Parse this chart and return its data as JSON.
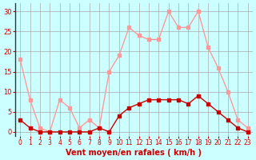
{
  "x": [
    0,
    1,
    2,
    3,
    4,
    5,
    6,
    7,
    8,
    9,
    10,
    11,
    12,
    13,
    14,
    15,
    16,
    17,
    18,
    19,
    20,
    21,
    22,
    23
  ],
  "wind_avg": [
    3,
    1,
    0,
    0,
    0,
    0,
    0,
    0,
    1,
    0,
    4,
    6,
    7,
    8,
    8,
    8,
    8,
    7,
    9,
    7,
    5,
    3,
    1,
    0
  ],
  "wind_gust": [
    18,
    8,
    1,
    0,
    8,
    6,
    1,
    3,
    1,
    15,
    19,
    26,
    24,
    23,
    23,
    30,
    26,
    26,
    30,
    21,
    16,
    10,
    3,
    1
  ],
  "avg_color": "#cc0000",
  "gust_color": "#ff9999",
  "bg_color": "#ccffff",
  "grid_color": "#aaaaaa",
  "axis_color": "#cc0000",
  "xlabel": "Vent moyen/en rafales ( km/h )",
  "xlabel_color": "#cc0000",
  "yticks": [
    0,
    5,
    10,
    15,
    20,
    25,
    30
  ],
  "xticks": [
    0,
    1,
    2,
    3,
    4,
    5,
    6,
    7,
    8,
    9,
    10,
    11,
    12,
    13,
    14,
    15,
    16,
    17,
    18,
    19,
    20,
    21,
    22,
    23
  ],
  "ylim": [
    -1,
    32
  ],
  "xlim": [
    -0.5,
    23.5
  ]
}
